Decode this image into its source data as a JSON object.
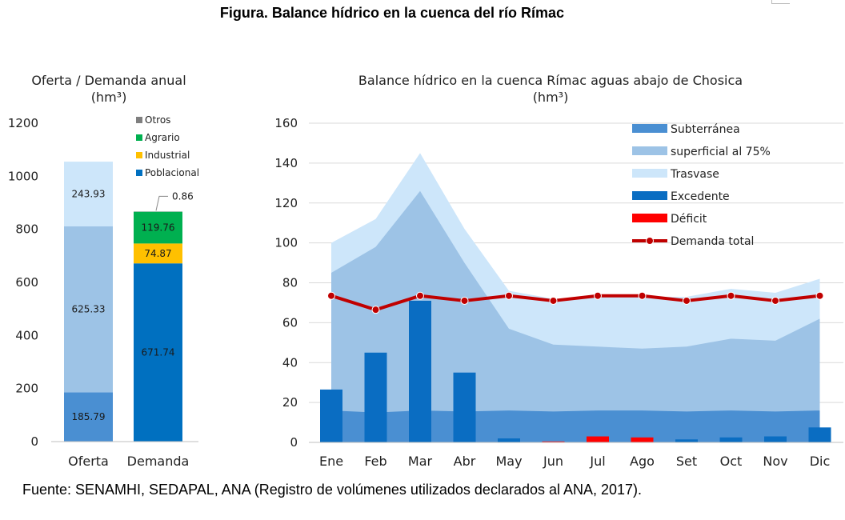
{
  "figure_title": "Figura. Balance hídrico en la cuenca del río Rímac",
  "source": "Fuente: SENAMHI, SEDAPAL, ANA (Registro de volúmenes utilizados declarados al ANA, 2017).",
  "colors": {
    "subterranea": "#4a8fd2",
    "superficial": "#9dc3e6",
    "trasvase": "#cde6fa",
    "excedente": "#0a6dc2",
    "deficit": "#ff0000",
    "demanda": "#c00000",
    "otros": "#7f7f7f",
    "agrario": "#00b050",
    "industrial": "#ffc000",
    "poblacional": "#0070c0",
    "grid": "#d9d9d9"
  },
  "chart_data": [
    {
      "type": "bar",
      "stacked": true,
      "title": "Oferta / Demanda anual",
      "subtitle": "(hm³)",
      "categories": [
        "Oferta",
        "Demanda"
      ],
      "ylim": [
        0,
        1200
      ],
      "yticks": [
        "0",
        "200",
        "400",
        "600",
        "800",
        "1000",
        "1200"
      ],
      "grid": false,
      "legend_position": "top-right",
      "oferta_segments": [
        {
          "value": 185.79,
          "label": "185.79",
          "color_key": "subterranea"
        },
        {
          "value": 625.33,
          "label": "625.33",
          "color_key": "superficial"
        },
        {
          "value": 243.93,
          "label": "243.93",
          "color_key": "trasvase"
        }
      ],
      "demanda_segments": [
        {
          "name": "Poblacional",
          "value": 671.74,
          "label": "671.74",
          "color_key": "poblacional"
        },
        {
          "name": "Industrial",
          "value": 74.87,
          "label": "74.87",
          "color_key": "industrial"
        },
        {
          "name": "Agrario",
          "value": 119.76,
          "label": "119.76",
          "color_key": "agrario"
        },
        {
          "name": "Otros",
          "value": 0.86,
          "label": "0.86",
          "color_key": "otros"
        }
      ],
      "legend": [
        "Otros",
        "Agrario",
        "Industrial",
        "Poblacional"
      ]
    },
    {
      "type": "area",
      "title": "Balance hídrico en la cuenca Rímac aguas abajo de Chosica",
      "subtitle": "(hm³)",
      "categories": [
        "Ene",
        "Feb",
        "Mar",
        "Abr",
        "May",
        "Jun",
        "Jul",
        "Ago",
        "Set",
        "Oct",
        "Nov",
        "Dic"
      ],
      "ylim": [
        0,
        160
      ],
      "yticks": [
        "0",
        "20",
        "40",
        "60",
        "80",
        "100",
        "120",
        "140",
        "160"
      ],
      "grid": true,
      "legend_position": "top-right",
      "series": [
        {
          "name": "Subterránea",
          "kind": "area",
          "color_key": "subterranea",
          "values": [
            16,
            15,
            16,
            15.5,
            16,
            15.5,
            16,
            16,
            15.5,
            16,
            15.5,
            16
          ]
        },
        {
          "name": "superficial al 75%",
          "kind": "area",
          "color_key": "superficial",
          "values": [
            85,
            98,
            126,
            90,
            57,
            49,
            48,
            47,
            48,
            52,
            51,
            62
          ]
        },
        {
          "name": "Trasvase",
          "kind": "area",
          "color_key": "trasvase",
          "values": [
            100,
            112,
            145,
            107,
            76,
            72,
            73,
            73,
            73,
            77,
            75,
            82
          ]
        },
        {
          "name": "Excedente",
          "kind": "bar",
          "color_key": "excedente",
          "values": [
            26.5,
            45,
            71,
            35,
            2,
            0,
            0,
            0,
            1.5,
            2.5,
            3,
            7.5
          ]
        },
        {
          "name": "Déficit",
          "kind": "bar",
          "color_key": "deficit",
          "values": [
            0,
            0,
            0,
            0,
            0,
            0.5,
            3,
            2.5,
            0,
            0,
            0,
            0
          ]
        },
        {
          "name": "Demanda total",
          "kind": "line",
          "color_key": "demanda",
          "values": [
            73.5,
            66.5,
            73.5,
            71,
            73.5,
            71,
            73.5,
            73.5,
            71,
            73.5,
            71,
            73.5
          ]
        }
      ]
    }
  ]
}
